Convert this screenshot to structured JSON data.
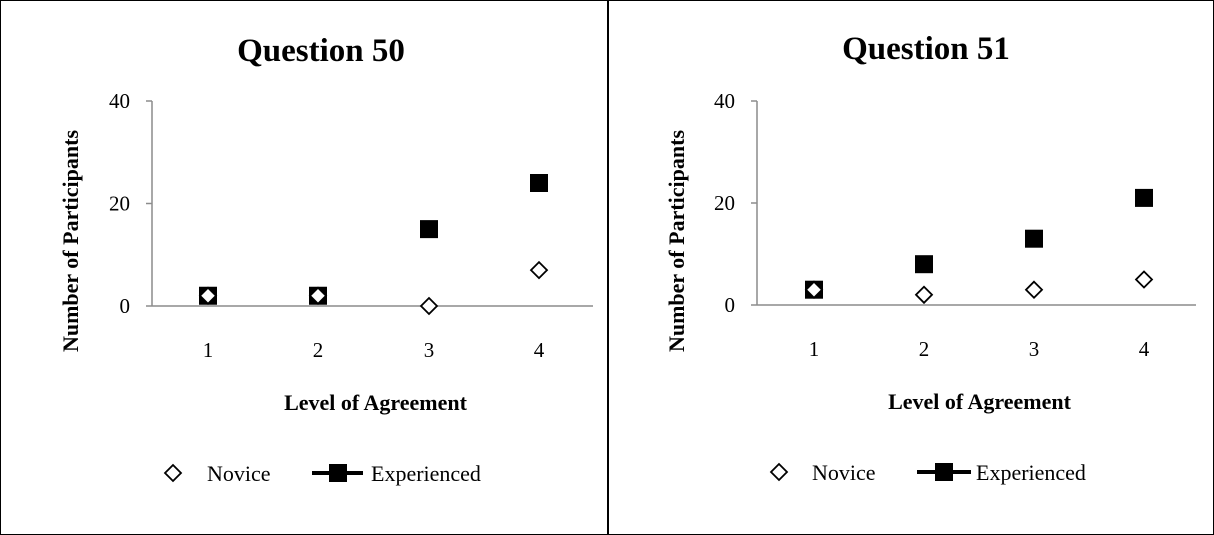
{
  "chart_data": [
    {
      "type": "scatter",
      "title": "Question 50",
      "xlabel": "Level of Agreement",
      "ylabel": "Number of Participants",
      "categories": [
        "1",
        "2",
        "3",
        "4"
      ],
      "yticks": [
        "0",
        "20",
        "40"
      ],
      "ylim": [
        0,
        40
      ],
      "legend_position": "bottom",
      "series": [
        {
          "name": "Novice",
          "marker": "diamond-open",
          "color": "#000000",
          "values": [
            2,
            2,
            0,
            7
          ]
        },
        {
          "name": "Experienced",
          "marker": "square-filled",
          "color": "#000000",
          "values": [
            2,
            2,
            15,
            24
          ]
        }
      ]
    },
    {
      "type": "scatter",
      "title": "Question 51",
      "xlabel": "Level of Agreement",
      "ylabel": "Number of Participants",
      "categories": [
        "1",
        "2",
        "3",
        "4"
      ],
      "yticks": [
        "0",
        "20",
        "40"
      ],
      "ylim": [
        0,
        40
      ],
      "legend_position": "bottom",
      "series": [
        {
          "name": "Novice",
          "marker": "diamond-open",
          "color": "#000000",
          "values": [
            3,
            2,
            3,
            5
          ]
        },
        {
          "name": "Experienced",
          "marker": "square-filled",
          "color": "#000000",
          "values": [
            3,
            8,
            13,
            21
          ]
        }
      ]
    }
  ]
}
